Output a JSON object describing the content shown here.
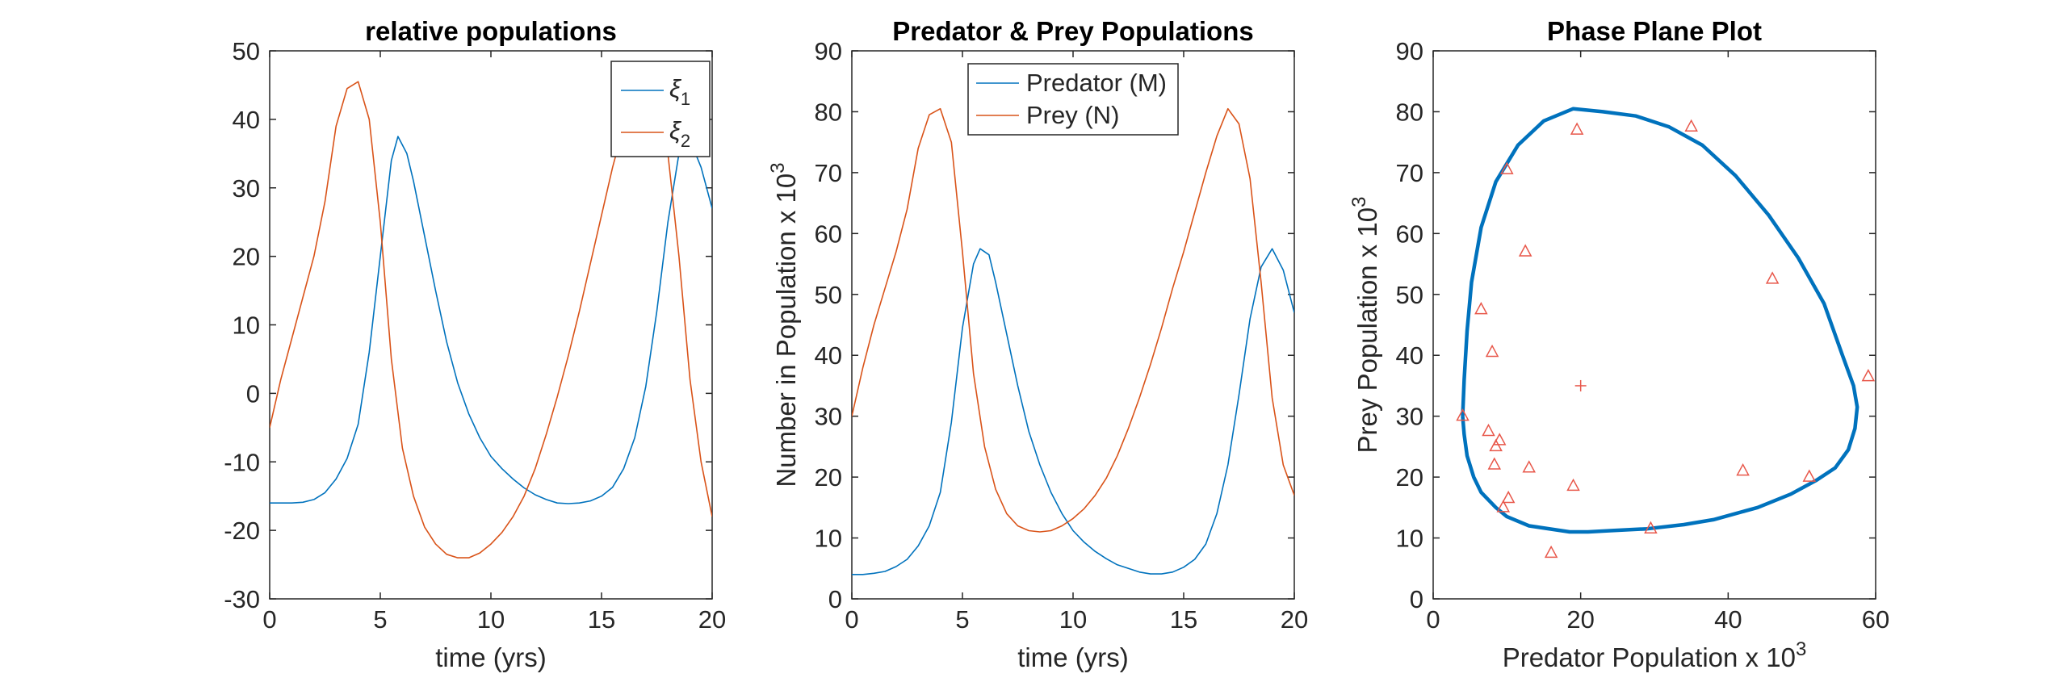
{
  "colors": {
    "series_blue": "#0072BD",
    "series_orange": "#D95319",
    "marker_red": "#E8574A",
    "axis": "#262626"
  },
  "chart_data": [
    {
      "type": "line",
      "title": "relative populations",
      "xlabel": "time (yrs)",
      "ylabel": "",
      "xlim": [
        0,
        20
      ],
      "ylim": [
        -30,
        50
      ],
      "xticks": [
        0,
        5,
        10,
        15,
        20
      ],
      "yticks": [
        -30,
        -20,
        -10,
        0,
        10,
        20,
        30,
        40,
        50
      ],
      "grid": false,
      "legend": {
        "position": "top-right",
        "entries": [
          "ξ1",
          "ξ2"
        ]
      },
      "series": [
        {
          "name": "ξ1",
          "color": "#0072BD",
          "x": [
            0,
            0.5,
            1,
            1.5,
            2,
            2.5,
            3,
            3.5,
            4,
            4.5,
            5,
            5.5,
            5.8,
            6.2,
            6.5,
            7,
            7.5,
            8,
            8.5,
            9,
            9.5,
            10,
            10.5,
            11,
            11.5,
            12,
            12.5,
            13,
            13.5,
            14,
            14.5,
            15,
            15.5,
            16,
            16.5,
            17,
            17.5,
            18,
            18.5,
            19,
            19.5,
            20
          ],
          "y": [
            -16,
            -16,
            -16,
            -15.9,
            -15.5,
            -14.5,
            -12.5,
            -9.5,
            -4.5,
            6,
            20,
            34,
            37.5,
            35,
            31,
            23,
            15,
            7.5,
            1.5,
            -3,
            -6.5,
            -9.2,
            -11,
            -12.5,
            -13.8,
            -14.8,
            -15.5,
            -16,
            -16.1,
            -16,
            -15.7,
            -15,
            -13.7,
            -11,
            -6.5,
            1,
            12,
            25,
            35,
            37,
            33,
            27
          ]
        },
        {
          "name": "ξ2",
          "color": "#D95319",
          "x": [
            0,
            0.5,
            1,
            1.5,
            2,
            2.5,
            3,
            3.5,
            4,
            4.5,
            5,
            5.5,
            6,
            6.5,
            7,
            7.5,
            8,
            8.5,
            9,
            9.5,
            10,
            10.5,
            11,
            11.5,
            12,
            12.5,
            13,
            13.5,
            14,
            14.5,
            15,
            15.5,
            16,
            16.5,
            17,
            17.5,
            18,
            18.5,
            19,
            19.5,
            20
          ],
          "y": [
            -5,
            2,
            8,
            14,
            20,
            28,
            39,
            44.5,
            45.5,
            40,
            25,
            5,
            -8,
            -15,
            -19.5,
            -22,
            -23.5,
            -24,
            -24,
            -23.3,
            -22,
            -20.3,
            -18,
            -15,
            -11,
            -6,
            -0.5,
            5.5,
            12,
            19,
            26,
            33,
            39,
            43.5,
            45.5,
            43,
            35,
            20,
            2,
            -10,
            -18
          ]
        }
      ]
    },
    {
      "type": "line",
      "title": "Predator & Prey Populations",
      "xlabel": "time (yrs)",
      "ylabel": "Number in Population x 10",
      "ylabel_superscript": "3",
      "xlim": [
        0,
        20
      ],
      "ylim": [
        0,
        90
      ],
      "xticks": [
        0,
        5,
        10,
        15,
        20
      ],
      "yticks": [
        0,
        10,
        20,
        30,
        40,
        50,
        60,
        70,
        80,
        90
      ],
      "grid": false,
      "legend": {
        "position": "top-center",
        "entries": [
          "Predator (M)",
          "Prey (N)"
        ]
      },
      "series": [
        {
          "name": "Predator (M)",
          "color": "#0072BD",
          "x": [
            0,
            0.5,
            1,
            1.5,
            2,
            2.5,
            3,
            3.5,
            4,
            4.5,
            5,
            5.5,
            5.8,
            6.2,
            6.5,
            7,
            7.5,
            8,
            8.5,
            9,
            9.5,
            10,
            10.5,
            11,
            11.5,
            12,
            12.5,
            13,
            13.5,
            14,
            14.5,
            15,
            15.5,
            16,
            16.5,
            17,
            17.5,
            18,
            18.5,
            19,
            19.5,
            20
          ],
          "y": [
            4,
            4,
            4.2,
            4.5,
            5.3,
            6.5,
            8.7,
            12,
            17.5,
            29,
            44.5,
            55,
            57.5,
            56.5,
            52,
            43.5,
            35,
            27.5,
            22,
            17.5,
            14,
            11.2,
            9.3,
            7.8,
            6.6,
            5.6,
            5,
            4.4,
            4.1,
            4.1,
            4.4,
            5.2,
            6.5,
            9,
            14,
            22,
            33.5,
            46,
            54.5,
            57.5,
            54,
            47
          ]
        },
        {
          "name": "Prey (N)",
          "color": "#D95319",
          "x": [
            0,
            0.5,
            1,
            1.5,
            2,
            2.5,
            3,
            3.5,
            4,
            4.5,
            5,
            5.5,
            6,
            6.5,
            7,
            7.5,
            8,
            8.5,
            9,
            9.5,
            10,
            10.5,
            11,
            11.5,
            12,
            12.5,
            13,
            13.5,
            14,
            14.5,
            15,
            15.5,
            16,
            16.5,
            17,
            17.5,
            18,
            18.5,
            19,
            19.5,
            20
          ],
          "y": [
            30,
            38,
            45,
            51,
            57,
            64,
            74,
            79.5,
            80.5,
            75,
            57,
            37,
            25,
            18,
            14,
            12,
            11.2,
            11,
            11.2,
            12,
            13.2,
            14.8,
            17,
            19.8,
            23.5,
            28,
            33,
            38.5,
            44.5,
            51,
            57,
            63.5,
            70,
            76,
            80.5,
            78,
            69,
            52,
            33,
            22,
            17
          ]
        }
      ]
    },
    {
      "type": "line",
      "title": "Phase Plane Plot",
      "xlabel": "Predator Population x 10",
      "xlabel_superscript": "3",
      "ylabel": "Prey Population x 10",
      "ylabel_superscript": "3",
      "xlim": [
        0,
        60
      ],
      "ylim": [
        0,
        90
      ],
      "xticks": [
        0,
        20,
        40,
        60
      ],
      "yticks": [
        0,
        10,
        20,
        30,
        40,
        50,
        60,
        70,
        80,
        90
      ],
      "grid": false,
      "series": [
        {
          "name": "",
          "color": "#0072BD",
          "x": [
            4,
            4.2,
            4.6,
            5.2,
            6.5,
            8.5,
            11.5,
            15,
            19,
            23,
            27.5,
            32,
            36.5,
            41,
            45.5,
            49.5,
            53,
            55.5,
            57,
            57.5,
            57.2,
            56.3,
            54.5,
            52,
            48.5,
            44,
            38,
            34,
            29,
            24,
            21,
            18.5,
            13,
            10,
            8.5,
            6.5,
            5.5,
            4.6,
            4.2,
            4
          ],
          "y": [
            30,
            36,
            44,
            52,
            61,
            68.5,
            74.5,
            78.5,
            80.5,
            80,
            79.3,
            77.5,
            74.5,
            69.5,
            63,
            56,
            48.5,
            40,
            35,
            31.5,
            28,
            24.5,
            21.5,
            19.5,
            17.2,
            15,
            13,
            12.2,
            11.5,
            11.2,
            11,
            11,
            12,
            13.5,
            15,
            17.5,
            20,
            23.5,
            27,
            30
          ]
        }
      ],
      "markers": {
        "type": "triangle",
        "color": "#E8574A",
        "points": [
          [
            4,
            30
          ],
          [
            6.5,
            47.5
          ],
          [
            7.5,
            27.5
          ],
          [
            8,
            40.5
          ],
          [
            8.3,
            22
          ],
          [
            8.5,
            25
          ],
          [
            9,
            26
          ],
          [
            9.5,
            15
          ],
          [
            10,
            70.5
          ],
          [
            10.2,
            16.5
          ],
          [
            12.5,
            57
          ],
          [
            13,
            21.5
          ],
          [
            16,
            7.5
          ],
          [
            19,
            18.5
          ],
          [
            19.5,
            77
          ],
          [
            29.5,
            11.5
          ],
          [
            35,
            77.5
          ],
          [
            42,
            21
          ],
          [
            46,
            52.5
          ],
          [
            51,
            20
          ],
          [
            59,
            36.5
          ]
        ]
      },
      "center_marker": {
        "type": "plus",
        "color": "#E8574A",
        "point": [
          20,
          35
        ]
      }
    }
  ]
}
